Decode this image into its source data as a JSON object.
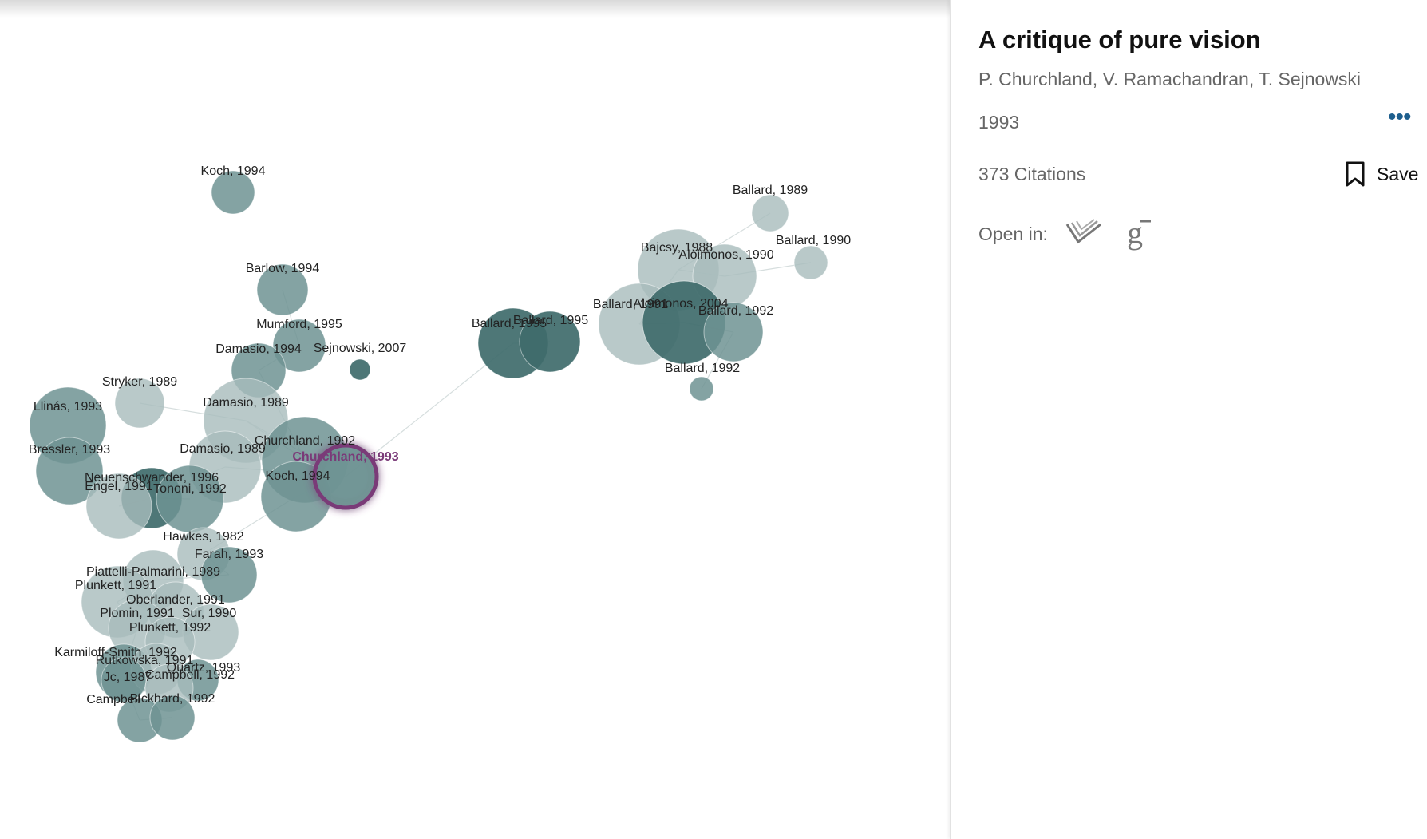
{
  "paper": {
    "title": "A critique of pure vision",
    "authors": "P. Churchland, V. Ramachandran, T. Sejnowski",
    "year": "1993",
    "more_label": "•••",
    "citations": "373 Citations",
    "save_label": "Save",
    "open_in_label": "Open in:",
    "open_in_icons": [
      "semantic-scholar-icon",
      "google-scholar-icon"
    ]
  },
  "colors": {
    "node_dark": "#3f6b6b",
    "node_mid": "#6f9393",
    "node_light": "#a7bcbc",
    "selected_ring": "#7a3a78",
    "edge": "#d6dede"
  },
  "graph": {
    "nodes": [
      {
        "label": "Koch, 1994",
        "shade": "mid"
      },
      {
        "label": "Barlow, 1994",
        "shade": "mid"
      },
      {
        "label": "Mumford, 1995",
        "shade": "mid"
      },
      {
        "label": "Damasio, 1994",
        "shade": "mid"
      },
      {
        "label": "Sejnowski, 2007",
        "shade": "dark"
      },
      {
        "label": "Stryker, 1989",
        "shade": "light"
      },
      {
        "label": "Damasio, 1989",
        "shade": "light"
      },
      {
        "label": "Llinás, 1993",
        "shade": "mid"
      },
      {
        "label": "Bressler, 1993",
        "shade": "mid"
      },
      {
        "label": "Damasio, 1989",
        "shade": "light"
      },
      {
        "label": "Churchland, 1992",
        "shade": "mid"
      },
      {
        "label": "Koch, 1994",
        "shade": "mid"
      },
      {
        "label": "Churchland, 1993",
        "shade": "mid",
        "selected": true
      },
      {
        "label": "Neuenschwander, 1996",
        "shade": "dark"
      },
      {
        "label": "Engel, 1991",
        "shade": "light"
      },
      {
        "label": "Tononi, 1992",
        "shade": "mid"
      },
      {
        "label": "Hawkes, 1982",
        "shade": "light"
      },
      {
        "label": "Farah, 1993",
        "shade": "mid"
      },
      {
        "label": "Piattelli-Palmarini, 1989",
        "shade": "light"
      },
      {
        "label": "Plunkett, 1991",
        "shade": "light"
      },
      {
        "label": "Oberlander, 1991",
        "shade": "light"
      },
      {
        "label": "Plomin, 1991",
        "shade": "light"
      },
      {
        "label": "Sur, 1990",
        "shade": "light"
      },
      {
        "label": "Plunkett, 1992",
        "shade": "light"
      },
      {
        "label": "Karmiloff-Smith, 1992",
        "shade": "mid"
      },
      {
        "label": "Rutkowska, 1991",
        "shade": "light"
      },
      {
        "label": "Quartz, 1993",
        "shade": "mid"
      },
      {
        "label": "Jc, 1987",
        "shade": "mid"
      },
      {
        "label": "Campbell, 1992",
        "shade": "light"
      },
      {
        "label": "Campbell",
        "shade": "mid"
      },
      {
        "label": "Bickhard, 1992",
        "shade": "mid"
      },
      {
        "label": "Ballard, 1995",
        "shade": "dark"
      },
      {
        "label": "Ballard, 1995",
        "shade": "dark"
      },
      {
        "label": "Ballard, 1989",
        "shade": "light"
      },
      {
        "label": "Ballard, 1990",
        "shade": "light"
      },
      {
        "label": "Bajcsy, 1988",
        "shade": "light"
      },
      {
        "label": "Aloimonos, 1990",
        "shade": "light"
      },
      {
        "label": "Ballard, 1991",
        "shade": "light"
      },
      {
        "label": "Aloimonos, 2004",
        "shade": "dark"
      },
      {
        "label": "Ballard, 1992",
        "shade": "mid"
      },
      {
        "label": "Ballard, 1992",
        "shade": "mid"
      }
    ]
  }
}
